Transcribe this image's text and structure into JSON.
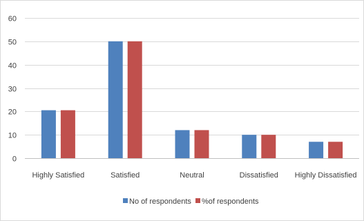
{
  "chart_data": {
    "type": "bar",
    "categories": [
      "Highly Satisfied",
      "Satisfied",
      "Neutral",
      "Dissatisfied",
      "Highly Dissatisfied"
    ],
    "series": [
      {
        "name": "No of respondents",
        "values": [
          20.5,
          50,
          12,
          10,
          7
        ],
        "color": "#4f81bd"
      },
      {
        "name": "%of respondents",
        "values": [
          20.5,
          50,
          12,
          10,
          7
        ],
        "color": "#c0504d"
      }
    ],
    "yticks": [
      0,
      10,
      20,
      30,
      40,
      50,
      60
    ],
    "ylim": [
      0,
      60
    ],
    "grid": true,
    "legend_position": "bottom",
    "gridline_color": "#d9d9d9"
  }
}
